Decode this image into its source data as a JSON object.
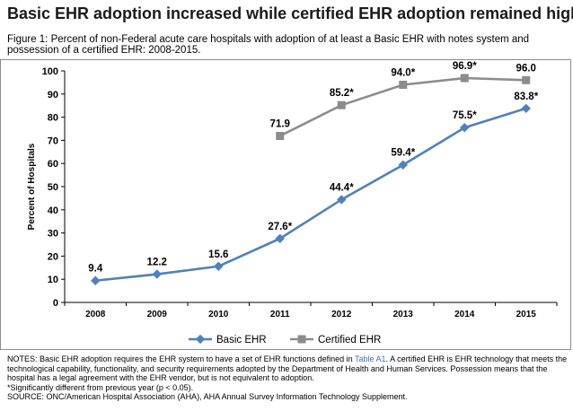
{
  "headline": "Basic EHR adoption increased while certified EHR adoption remained high.",
  "figure_caption": "Figure 1: Percent of non-Federal acute care hospitals with adoption of at least a Basic EHR with notes system and possession of a certified EHR: 2008-2015.",
  "chart_data": {
    "type": "line",
    "categories": [
      "2008",
      "2009",
      "2010",
      "2011",
      "2012",
      "2013",
      "2014",
      "2015"
    ],
    "ylabel": "Percent of Hospitals",
    "xlabel": "",
    "ylim": [
      0,
      100
    ],
    "yticks": [
      0,
      10,
      20,
      30,
      40,
      50,
      60,
      70,
      80,
      90,
      100
    ],
    "legend_position": "bottom",
    "grid": false,
    "series": [
      {
        "name": "Basic EHR",
        "color": "#4f81bd",
        "marker": "diamond",
        "values": [
          9.4,
          12.2,
          15.6,
          27.6,
          44.4,
          59.4,
          75.5,
          83.8
        ],
        "labels": [
          "9.4",
          "12.2",
          "15.6",
          "27.6*",
          "44.4*",
          "59.4*",
          "75.5*",
          "83.8*"
        ]
      },
      {
        "name": "Certified EHR",
        "color": "#8c8c8c",
        "marker": "square",
        "values": [
          null,
          null,
          null,
          71.9,
          85.2,
          94.0,
          96.9,
          96.0
        ],
        "labels": [
          "",
          "",
          "",
          "71.9",
          "85.2*",
          "94.0*",
          "96.9*",
          "96.0"
        ]
      }
    ]
  },
  "notes": {
    "line1_pre": "NOTES: Basic EHR adoption requires the EHR system to have a set of EHR functions defined in ",
    "line1_link": "Table A1",
    "line1_post": ". A certified EHR is EHR technology that meets the technological capability, functionality, and security requirements adopted by the Department of Health and Human Services. Possession means that the hospital has a legal agreement with the EHR vendor, but is not equivalent to adoption.",
    "significance": "*Significantly different from previous year (p < 0.05).",
    "source": "SOURCE: ONC/American Hospital Association (AHA), AHA Annual Survey Information Technology Supplement."
  }
}
